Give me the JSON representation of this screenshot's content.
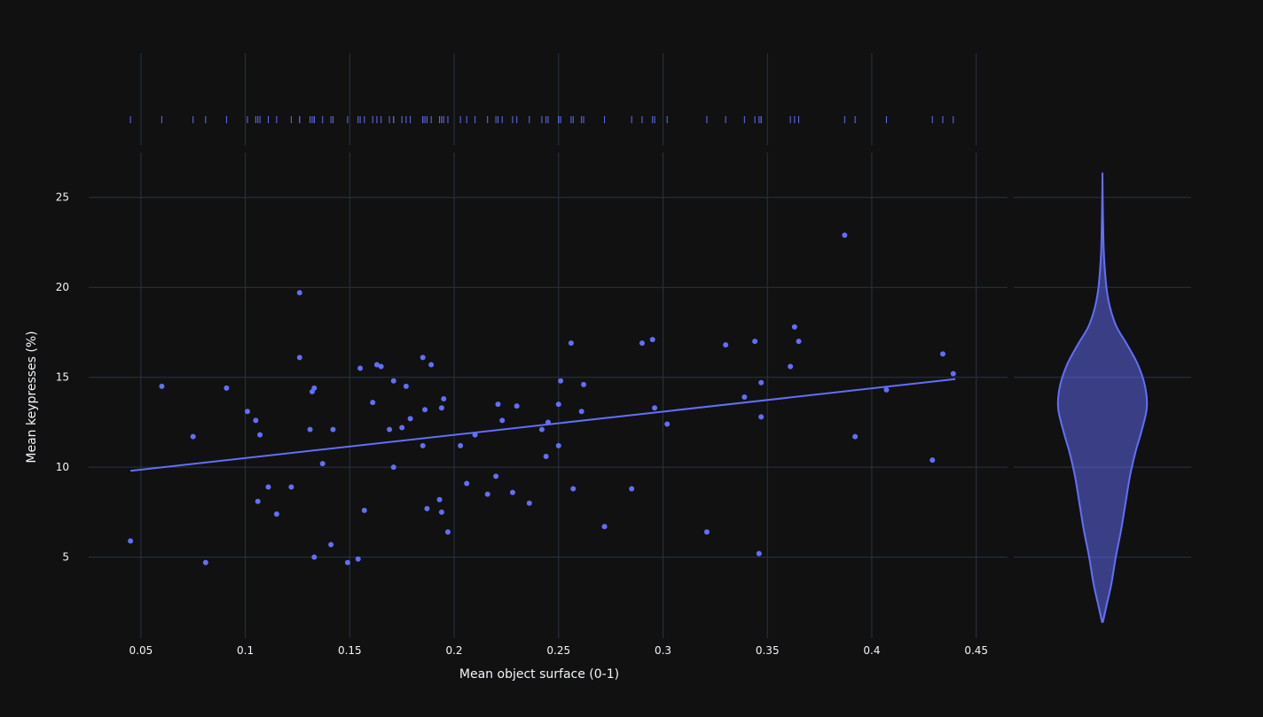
{
  "chart_data": {
    "type": "scatter",
    "title": "",
    "xlabel": "Mean object surface (0-1)",
    "ylabel": "Mean keypresses (%)",
    "xlim": [
      0.025,
      0.465
    ],
    "ylim": [
      0.5,
      27.5
    ],
    "x_ticks": [
      0.05,
      0.1,
      0.15,
      0.2,
      0.25,
      0.3,
      0.35,
      0.4,
      0.45
    ],
    "x_tick_labels": [
      "0.05",
      "0.1",
      "0.15",
      "0.2",
      "0.25",
      "0.3",
      "0.35",
      "0.4",
      "0.45"
    ],
    "y_ticks": [
      5,
      10,
      15,
      20,
      25
    ],
    "y_tick_labels": [
      "5",
      "10",
      "15",
      "20",
      "25"
    ],
    "grid": true,
    "theme": "dark",
    "marker_color": "#636efa",
    "background_color": "#111111",
    "grid_color": "#283442",
    "trendline": {
      "type": "ols",
      "x": [
        0.045,
        0.44
      ],
      "y": [
        9.8,
        14.9
      ]
    },
    "marginal_x": "rug",
    "marginal_y": "violin",
    "violin": {
      "min": 1.4,
      "max": 26.2,
      "profile_y": [
        1.4,
        2.4,
        3.5,
        5,
        6.5,
        8,
        9.5,
        10.8,
        12,
        13.3,
        14.5,
        15.7,
        16.8,
        17.8,
        18.8,
        19.8,
        20.8,
        22,
        23.5,
        25,
        26.2
      ],
      "profile_halfwidth": [
        0.01,
        0.1,
        0.2,
        0.3,
        0.42,
        0.52,
        0.62,
        0.74,
        0.88,
        1.0,
        0.96,
        0.8,
        0.56,
        0.32,
        0.18,
        0.1,
        0.06,
        0.03,
        0.015,
        0.005,
        0.0
      ]
    },
    "points": [
      [
        0.045,
        5.9
      ],
      [
        0.06,
        14.5
      ],
      [
        0.075,
        11.7
      ],
      [
        0.081,
        4.7
      ],
      [
        0.091,
        14.4
      ],
      [
        0.101,
        13.1
      ],
      [
        0.105,
        12.6
      ],
      [
        0.106,
        8.1
      ],
      [
        0.107,
        11.8
      ],
      [
        0.111,
        8.9
      ],
      [
        0.115,
        7.4
      ],
      [
        0.122,
        8.9
      ],
      [
        0.126,
        19.7
      ],
      [
        0.126,
        16.1
      ],
      [
        0.131,
        12.1
      ],
      [
        0.132,
        14.2
      ],
      [
        0.133,
        14.4
      ],
      [
        0.133,
        5.0
      ],
      [
        0.137,
        10.2
      ],
      [
        0.141,
        5.7
      ],
      [
        0.142,
        12.1
      ],
      [
        0.149,
        4.7
      ],
      [
        0.154,
        4.9
      ],
      [
        0.155,
        15.5
      ],
      [
        0.157,
        7.6
      ],
      [
        0.161,
        13.6
      ],
      [
        0.163,
        15.7
      ],
      [
        0.165,
        15.6
      ],
      [
        0.169,
        12.1
      ],
      [
        0.171,
        14.8
      ],
      [
        0.171,
        10.0
      ],
      [
        0.175,
        12.2
      ],
      [
        0.177,
        14.5
      ],
      [
        0.179,
        12.7
      ],
      [
        0.185,
        11.2
      ],
      [
        0.185,
        16.1
      ],
      [
        0.186,
        13.2
      ],
      [
        0.187,
        7.7
      ],
      [
        0.189,
        15.7
      ],
      [
        0.193,
        8.2
      ],
      [
        0.194,
        13.3
      ],
      [
        0.194,
        7.5
      ],
      [
        0.195,
        13.8
      ],
      [
        0.197,
        6.4
      ],
      [
        0.203,
        11.2
      ],
      [
        0.206,
        9.1
      ],
      [
        0.21,
        11.8
      ],
      [
        0.216,
        8.5
      ],
      [
        0.22,
        9.5
      ],
      [
        0.221,
        13.5
      ],
      [
        0.223,
        12.6
      ],
      [
        0.228,
        8.6
      ],
      [
        0.23,
        13.4
      ],
      [
        0.236,
        8.0
      ],
      [
        0.242,
        12.1
      ],
      [
        0.244,
        10.6
      ],
      [
        0.245,
        12.5
      ],
      [
        0.25,
        13.5
      ],
      [
        0.25,
        11.2
      ],
      [
        0.251,
        14.8
      ],
      [
        0.256,
        16.9
      ],
      [
        0.257,
        8.8
      ],
      [
        0.261,
        13.1
      ],
      [
        0.262,
        14.6
      ],
      [
        0.272,
        6.7
      ],
      [
        0.285,
        8.8
      ],
      [
        0.29,
        16.9
      ],
      [
        0.295,
        17.1
      ],
      [
        0.296,
        13.3
      ],
      [
        0.302,
        12.4
      ],
      [
        0.321,
        6.4
      ],
      [
        0.33,
        16.8
      ],
      [
        0.339,
        13.9
      ],
      [
        0.344,
        17.0
      ],
      [
        0.346,
        5.2
      ],
      [
        0.347,
        14.7
      ],
      [
        0.347,
        12.8
      ],
      [
        0.361,
        15.6
      ],
      [
        0.363,
        17.8
      ],
      [
        0.365,
        17.0
      ],
      [
        0.387,
        22.9
      ],
      [
        0.392,
        11.7
      ],
      [
        0.407,
        14.3
      ],
      [
        0.429,
        10.4
      ],
      [
        0.434,
        16.3
      ],
      [
        0.439,
        15.2
      ]
    ]
  }
}
